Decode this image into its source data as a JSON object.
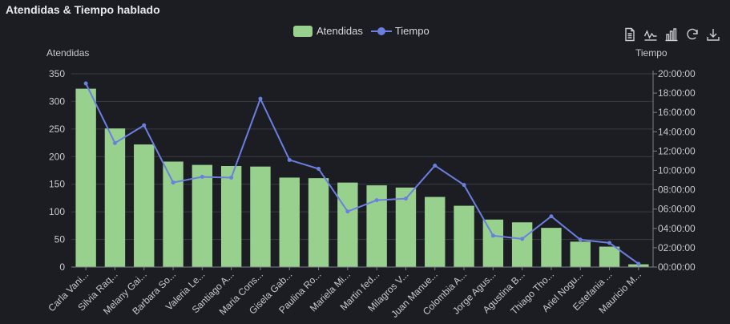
{
  "window": {
    "title": "Atendidas & Tiempo hablado"
  },
  "legend": {
    "bar_label": "Atendidas",
    "line_label": "Tiempo"
  },
  "toolbox": [
    "data-view-icon",
    "line-chart-icon",
    "bar-chart-icon",
    "restore-icon",
    "download-icon"
  ],
  "colors": {
    "bar": "#98d08d",
    "line": "#6b7fe0",
    "background": "#1b1d22",
    "grid": "#3a3d44"
  },
  "chart_data": {
    "type": "bar",
    "title": "Atendidas & Tiempo hablado",
    "categories": [
      "Carla Vani...",
      "Silvia Raq...",
      "Melany Gai...",
      "Barbara So...",
      "Valeria Le...",
      "Santiago A...",
      "Maria Cons...",
      "Gisela Gab...",
      "Paulina Ro...",
      "Mariela Mi...",
      "Martin fed...",
      "Milagros V...",
      "Juan Manue...",
      "Colombia A...",
      "Jorge Agus...",
      "Agustina B...",
      "Thiago Tho...",
      "Ariel Nogu...",
      "Estefania ...",
      "Mauricio M..."
    ],
    "series": [
      {
        "name": "Atendidas",
        "type": "bar",
        "axis": "left",
        "values": [
          323,
          251,
          222,
          191,
          185,
          183,
          182,
          162,
          161,
          153,
          148,
          144,
          127,
          111,
          86,
          81,
          71,
          46,
          37,
          5
        ]
      },
      {
        "name": "Tiempo",
        "type": "line",
        "axis": "right",
        "values": [
          "19:00:00",
          "12:50:00",
          "14:40:00",
          "08:45:00",
          "09:20:00",
          "09:15:00",
          "17:25:00",
          "11:05:00",
          "10:10:00",
          "05:45:00",
          "06:55:00",
          "07:05:00",
          "10:30:00",
          "08:30:00",
          "03:15:00",
          "02:55:00",
          "05:15:00",
          "02:50:00",
          "02:30:00",
          "00:20:00"
        ]
      }
    ],
    "yaxis_left": {
      "label": "Atendidas",
      "min": 0,
      "max": 350,
      "ticks": [
        0,
        50,
        100,
        150,
        200,
        250,
        300,
        350
      ]
    },
    "yaxis_right": {
      "label": "Tiempo",
      "min": "00:00:00",
      "max": "20:00:00",
      "ticks": [
        "00:00:00",
        "02:00:00",
        "04:00:00",
        "06:00:00",
        "08:00:00",
        "10:00:00",
        "12:00:00",
        "14:00:00",
        "16:00:00",
        "18:00:00",
        "20:00:00"
      ]
    },
    "grid": true,
    "legend_position": "top-center"
  }
}
